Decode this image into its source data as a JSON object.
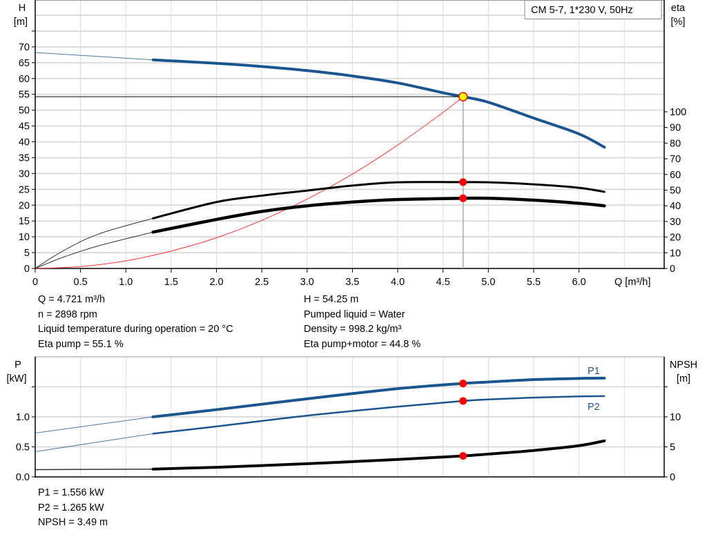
{
  "chart_data": [
    {
      "type": "line",
      "legend_box": "CM 5-7, 1*230 V, 50Hz",
      "xlabel": "Q [m³/h]",
      "ylabel_left": [
        "H",
        "[m]"
      ],
      "ylabel_right": [
        "eta",
        "[%]"
      ],
      "xlim": [
        0,
        6.94
      ],
      "ylim_left": [
        0,
        84.8
      ],
      "ylim_right": [
        0,
        100
      ],
      "x_ticks": [
        "0",
        "0.5",
        "1.0",
        "1.5",
        "2.0",
        "2.5",
        "3.0",
        "3.5",
        "4.0",
        "4.5",
        "5.0",
        "5.5",
        "6.0"
      ],
      "x_tick_values": [
        0,
        0.5,
        1.0,
        1.5,
        2.0,
        2.5,
        3.0,
        3.5,
        4.0,
        4.5,
        5.0,
        5.5,
        6.0
      ],
      "y_ticks_left": [
        "0",
        "5",
        "10",
        "15",
        "20",
        "25",
        "30",
        "35",
        "40",
        "45",
        "50",
        "55",
        "60",
        "65",
        "70"
      ],
      "y_ticks_right": [
        "0",
        "10",
        "20",
        "30",
        "40",
        "50",
        "60",
        "70",
        "80",
        "90",
        "100"
      ],
      "grid": true,
      "colors": {
        "head": "#1b5590",
        "eta": "#000000",
        "system": "#ff3030",
        "grid": "#dcdcdc",
        "point": "#ff0000",
        "duty_point_fill": "#ffff00"
      },
      "series": [
        {
          "key": "H",
          "axis": "left",
          "color": "#1b5590",
          "x": [
            0,
            1.3,
            2.0,
            2.5,
            3.0,
            3.5,
            4.0,
            4.5,
            4.721,
            5.0,
            5.5,
            6.0,
            6.28
          ],
          "y": [
            68.2,
            65.9,
            64.8,
            63.8,
            62.5,
            60.8,
            58.6,
            55.5,
            54.25,
            52.5,
            47.5,
            42.5,
            38.3
          ]
        },
        {
          "key": "eta_pump",
          "axis": "right",
          "color": "#000000",
          "x": [
            0,
            0.3,
            0.7,
            1.3,
            2.0,
            2.5,
            3.0,
            3.5,
            4.0,
            4.721,
            5.0,
            5.5,
            6.0,
            6.28
          ],
          "y": [
            0,
            11,
            22,
            32,
            42.4,
            46.5,
            49.7,
            52.9,
            55.0,
            55.1,
            55.0,
            53.7,
            51.5,
            48.9
          ]
        },
        {
          "key": "eta_pump_motor",
          "axis": "right",
          "color": "#000000",
          "x": [
            0,
            0.3,
            0.7,
            1.3,
            2.0,
            2.5,
            3.0,
            3.5,
            4.0,
            4.721,
            5.0,
            5.5,
            6.0,
            6.28
          ],
          "y": [
            0,
            7,
            14.5,
            23.2,
            31.3,
            36.4,
            40,
            42.4,
            44,
            44.8,
            44.8,
            43.6,
            41.6,
            40
          ]
        },
        {
          "key": "system",
          "axis": "left",
          "color": "#ff3030",
          "type": "parabola",
          "x": [
            0,
            0.5,
            1.0,
            1.5,
            2.0,
            2.5,
            3.0,
            3.5,
            4.0,
            4.5,
            4.721
          ],
          "y": [
            0,
            0.6,
            2.4,
            5.5,
            9.7,
            15.2,
            21.9,
            29.8,
            39.0,
            49.3,
            54.25
          ]
        }
      ],
      "thick_from_x": 1.3,
      "duty_point": {
        "Q": 4.721,
        "H": 54.25,
        "eta_pump": 55.1,
        "eta_pump_motor": 44.8
      }
    },
    {
      "type": "line",
      "ylabel_left": [
        "P",
        "[kW]"
      ],
      "ylabel_right": [
        "NPSH",
        "[m]"
      ],
      "xlim": [
        0,
        6.94
      ],
      "ylim_left": [
        0,
        2.0
      ],
      "ylim_right": [
        0,
        20
      ],
      "y_ticks_left": [
        "0.0",
        "0.5",
        "1.0"
      ],
      "y_ticks_right": [
        "0",
        "5",
        "10"
      ],
      "grid": true,
      "series": [
        {
          "name": "P1",
          "key": "P1",
          "axis": "left",
          "color": "#1b5590",
          "x": [
            0,
            1.3,
            2.0,
            3.0,
            4.0,
            4.721,
            5.0,
            5.5,
            6.0,
            6.28
          ],
          "y": [
            0.73,
            1.0,
            1.12,
            1.3,
            1.47,
            1.556,
            1.58,
            1.62,
            1.64,
            1.645
          ]
        },
        {
          "name": "P2",
          "key": "P2",
          "axis": "left",
          "color": "#1b5590",
          "x": [
            0,
            1.3,
            2.0,
            3.0,
            4.0,
            4.721,
            5.0,
            5.5,
            6.0,
            6.28
          ],
          "y": [
            0.42,
            0.72,
            0.84,
            1.02,
            1.17,
            1.265,
            1.29,
            1.32,
            1.34,
            1.345
          ]
        },
        {
          "key": "NPSH",
          "axis": "right",
          "color": "#000000",
          "x": [
            0,
            1.3,
            2.0,
            3.0,
            4.0,
            4.721,
            5.0,
            5.5,
            6.0,
            6.28
          ],
          "y": [
            1.2,
            1.3,
            1.6,
            2.2,
            2.9,
            3.49,
            3.8,
            4.4,
            5.2,
            6.0
          ]
        }
      ],
      "thick_from_x": 1.3,
      "duty_point": {
        "Q": 4.721,
        "P1": 1.556,
        "P2": 1.265,
        "NPSH": 3.49
      }
    }
  ],
  "info_top_left": [
    "Q = 4.721 m³/h",
    "n = 2898 rpm",
    "Liquid temperature during operation = 20 °C",
    "Eta pump = 55.1 %"
  ],
  "info_top_right": [
    "H = 54.25 m",
    "Pumped liquid = Water",
    "Density = 998.2 kg/m³",
    "Eta pump+motor = 44.8 %"
  ],
  "info_bottom": [
    "P1 = 1.556 kW",
    "P2 = 1.265 kW",
    "NPSH = 3.49 m"
  ]
}
